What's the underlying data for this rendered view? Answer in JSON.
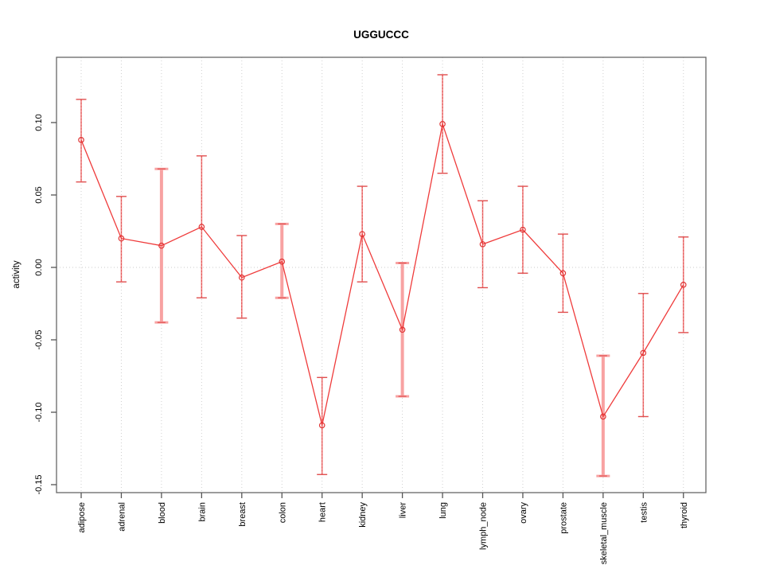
{
  "chart_data": {
    "type": "line",
    "title": "UGGUCCC",
    "xlabel": "",
    "ylabel": "activity",
    "categories": [
      "adipose",
      "adrenal",
      "blood",
      "brain",
      "breast",
      "colon",
      "heart",
      "kidney",
      "liver",
      "lung",
      "lymph_node",
      "ovary",
      "prostate",
      "skeletal_muscle",
      "testis",
      "thyroid"
    ],
    "series": [
      {
        "name": "activity",
        "values": [
          0.088,
          0.02,
          0.015,
          0.028,
          -0.007,
          0.004,
          -0.109,
          0.023,
          -0.043,
          0.099,
          0.016,
          0.026,
          -0.004,
          -0.103,
          -0.059,
          -0.012
        ],
        "ci_low": [
          0.059,
          -0.01,
          -0.038,
          -0.021,
          -0.035,
          -0.021,
          -0.143,
          -0.01,
          -0.089,
          0.065,
          -0.014,
          -0.004,
          -0.031,
          -0.144,
          -0.103,
          -0.045
        ],
        "ci_high": [
          0.116,
          0.049,
          0.068,
          0.077,
          0.022,
          0.03,
          -0.076,
          0.056,
          0.003,
          0.133,
          0.046,
          0.056,
          0.023,
          -0.061,
          -0.018,
          0.021
        ]
      }
    ],
    "wide_error_bars": [
      "blood",
      "colon",
      "liver",
      "skeletal_muscle"
    ],
    "ytick_labels": [
      "0.10",
      "0.05",
      "0.00",
      "-0.05",
      "-0.10",
      "-0.15"
    ],
    "yticks": [
      0.1,
      0.05,
      0.0,
      -0.05,
      -0.1,
      -0.15
    ],
    "ylim": [
      -0.155,
      0.145
    ],
    "grid": {
      "vertical_dotted": true,
      "zero_line_dotted": true,
      "horizontal_gridlines": false
    },
    "legend": "none",
    "colors": {
      "line": "#ef3b3b",
      "point_stroke": "#e03535",
      "error_bar": "#f08080",
      "error_bar_wide": "#f8a2a2",
      "error_cap": "#e04e4e",
      "gridline": "#cfcfcf",
      "zero_line": "#c8c8c8",
      "box": "#666666",
      "tick": "#555555",
      "text": "#000000"
    }
  }
}
